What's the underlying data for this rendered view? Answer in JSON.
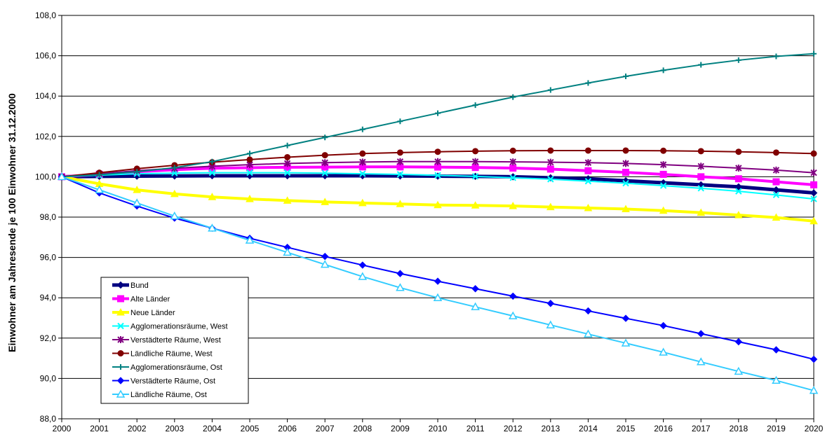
{
  "chart_data": {
    "type": "line",
    "title": "",
    "xlabel": "",
    "ylabel": "Einwohner am Jahresende je 100 Einwohner 31.12.2000",
    "ylim": [
      88,
      108
    ],
    "yticks": [
      "88,0",
      "90,0",
      "92,0",
      "94,0",
      "96,0",
      "98,0",
      "100,0",
      "102,0",
      "104,0",
      "106,0",
      "108,0"
    ],
    "grid": "horizontal",
    "legend_position": "bottom-left",
    "x": [
      "2000",
      "2001",
      "2002",
      "2003",
      "2004",
      "2005",
      "2006",
      "2007",
      "2008",
      "2009",
      "2010",
      "2011",
      "2012",
      "2013",
      "2014",
      "2015",
      "2016",
      "2017",
      "2018",
      "2019",
      "2020"
    ],
    "series": [
      {
        "name": "Bund",
        "color": "#000080",
        "marker": "diamond",
        "width": 5,
        "values": [
          100.0,
          100.02,
          100.03,
          100.04,
          100.05,
          100.05,
          100.05,
          100.05,
          100.05,
          100.04,
          100.03,
          100.02,
          100.0,
          99.95,
          99.9,
          99.8,
          99.7,
          99.6,
          99.5,
          99.35,
          99.2
        ]
      },
      {
        "name": "Alte Länder",
        "color": "#ff00ff",
        "marker": "square",
        "width": 4,
        "values": [
          100.0,
          100.12,
          100.25,
          100.35,
          100.42,
          100.45,
          100.47,
          100.48,
          100.49,
          100.49,
          100.48,
          100.46,
          100.43,
          100.38,
          100.3,
          100.22,
          100.12,
          100.0,
          99.9,
          99.75,
          99.6
        ]
      },
      {
        "name": "Neue Länder",
        "color": "#ffff00",
        "marker": "triangle",
        "width": 4,
        "values": [
          100.0,
          99.65,
          99.35,
          99.15,
          99.0,
          98.9,
          98.82,
          98.75,
          98.7,
          98.65,
          98.6,
          98.58,
          98.55,
          98.5,
          98.45,
          98.4,
          98.32,
          98.22,
          98.1,
          97.98,
          97.8
        ]
      },
      {
        "name": "Agglomerationsräume, West",
        "color": "#00ffff",
        "marker": "x",
        "width": 2,
        "values": [
          100.0,
          100.08,
          100.15,
          100.18,
          100.2,
          100.2,
          100.2,
          100.18,
          100.15,
          100.12,
          100.07,
          100.02,
          99.95,
          99.88,
          99.78,
          99.68,
          99.56,
          99.43,
          99.28,
          99.1,
          98.9
        ]
      },
      {
        "name": "Verstädterte Räume, West",
        "color": "#800080",
        "marker": "asterisk",
        "width": 2,
        "values": [
          100.0,
          100.15,
          100.3,
          100.42,
          100.52,
          100.6,
          100.66,
          100.7,
          100.73,
          100.75,
          100.75,
          100.75,
          100.74,
          100.72,
          100.7,
          100.66,
          100.6,
          100.52,
          100.43,
          100.33,
          100.2
        ]
      },
      {
        "name": "Ländliche Räume, West",
        "color": "#800000",
        "marker": "circle",
        "width": 2,
        "values": [
          100.0,
          100.2,
          100.4,
          100.57,
          100.72,
          100.85,
          100.97,
          101.07,
          101.15,
          101.2,
          101.24,
          101.27,
          101.29,
          101.3,
          101.3,
          101.3,
          101.29,
          101.27,
          101.24,
          101.2,
          101.15
        ]
      },
      {
        "name": "Agglomerationsräume, Ost",
        "color": "#008080",
        "marker": "plus",
        "width": 2,
        "values": [
          100.0,
          100.1,
          100.25,
          100.45,
          100.75,
          101.15,
          101.55,
          101.95,
          102.35,
          102.75,
          103.15,
          103.55,
          103.95,
          104.3,
          104.65,
          104.98,
          105.28,
          105.55,
          105.78,
          105.97,
          106.1
        ]
      },
      {
        "name": "Verstädterte Räume, Ost",
        "color": "#0000ff",
        "marker": "diamond",
        "width": 2,
        "values": [
          100.0,
          99.2,
          98.55,
          97.95,
          97.45,
          96.95,
          96.5,
          96.05,
          95.62,
          95.2,
          94.82,
          94.45,
          94.08,
          93.72,
          93.35,
          92.98,
          92.62,
          92.22,
          91.82,
          91.42,
          90.95
        ]
      },
      {
        "name": "Ländliche Räume, Ost",
        "color": "#33ccff",
        "marker": "triangle-open",
        "width": 2,
        "values": [
          100.0,
          99.35,
          98.7,
          98.05,
          97.45,
          96.85,
          96.25,
          95.65,
          95.05,
          94.5,
          94.0,
          93.55,
          93.1,
          92.65,
          92.2,
          91.75,
          91.3,
          90.82,
          90.35,
          89.9,
          89.4
        ]
      }
    ]
  }
}
